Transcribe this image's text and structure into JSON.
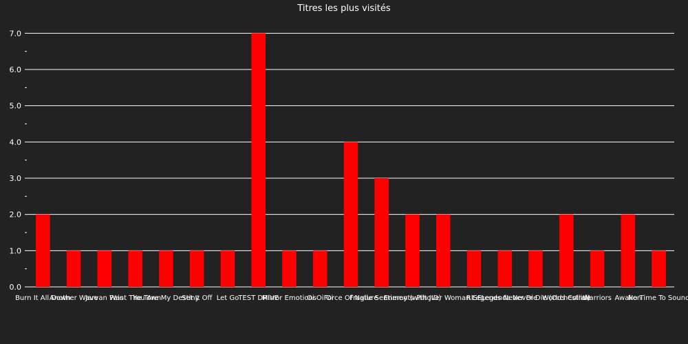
{
  "chart_data": {
    "type": "bar",
    "title": "Titres les plus visités",
    "xlabel": "",
    "ylabel": "",
    "ylim": [
      0,
      7.5
    ],
    "yticks": [
      "0.0",
      "1.0",
      "2.0",
      "3.0",
      "4.0",
      "5.0",
      "6.0",
      "7.0"
    ],
    "grid": true,
    "bar_color": "#ff0000",
    "background": "#222222",
    "text_color": "#ffffff",
    "categories": [
      "Burn It All Down",
      "Another Wave",
      "Jarvan Was",
      "Paint The Town",
      "You Are My Destiny",
      "Set It Off",
      "Let Go",
      "TEST DRIVE",
      "Mirror Emotions",
      "Oi Oi Oi",
      "Force Of Nature",
      "Fragile Sentiments",
      "Enemy (with JID)",
      "Piltover Woman",
      "RISE",
      "Legends Never Die",
      "Legends Never Die (Orchestral)",
      "Worlds Collide",
      "Warriors",
      "Awaken",
      "No Time To Sound"
    ],
    "values": [
      2,
      1,
      1,
      1,
      1,
      1,
      1,
      7,
      1,
      1,
      4,
      3,
      2,
      2,
      1,
      1,
      1,
      2,
      1,
      2,
      1
    ]
  }
}
